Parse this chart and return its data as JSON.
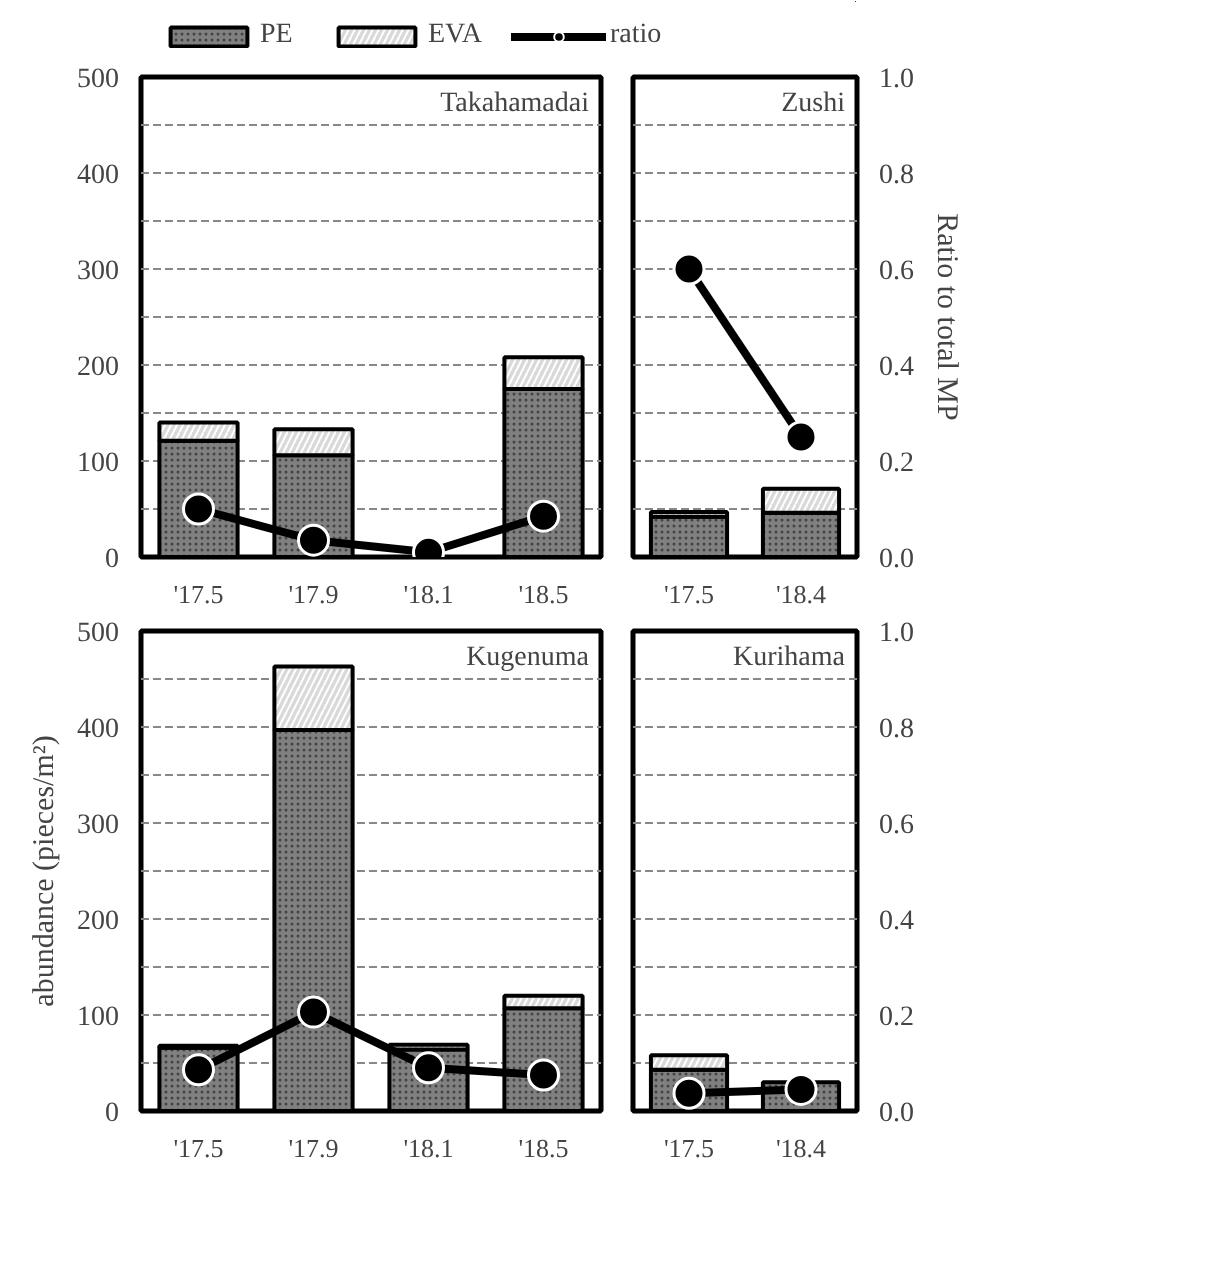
{
  "chart_data": [
    {
      "type": "bar",
      "title": "Takahamadai",
      "stacked": true,
      "legend": "top",
      "grid": "y",
      "marker": "circle",
      "tick_labels": [
        "x",
        "y"
      ],
      "categories": [
        "'17.5",
        "'17.9",
        "'18.1",
        "'18.5"
      ],
      "ylim": [
        0,
        500
      ],
      "yticks": [
        0,
        {
          "value": 50,
          "label": null
        },
        100,
        {
          "value": 150,
          "label": null
        },
        200,
        {
          "value": 250,
          "label": null
        },
        300,
        {
          "value": 350,
          "label": null
        },
        400,
        {
          "value": 450,
          "label": null
        },
        500
      ],
      "y2lim": [
        0,
        1
      ],
      "series": [
        {
          "name": "PE",
          "color": "#808080",
          "values": [
            121,
            106,
            0,
            175
          ]
        },
        {
          "name": "EVA",
          "color": "#d9d9d9",
          "values": [
            19,
            27,
            0,
            33
          ]
        },
        {
          "name": "ratio",
          "type": "line",
          "axis": "y2",
          "color": "#000000",
          "values": [
            0.1,
            0.035,
            0.01,
            0.085
          ]
        }
      ]
    },
    {
      "type": "bar",
      "title": "Zushi",
      "y2label": "Ratio to total MP",
      "stacked": true,
      "grid": "y",
      "marker": "circle",
      "tick_labels": [
        "x",
        "y2"
      ],
      "categories": [
        "'17.5",
        "'18.4"
      ],
      "ylim": [
        0,
        500
      ],
      "y2lim": [
        0,
        1
      ],
      "y2ticks": [
        {
          "value": 0,
          "label": "0.0"
        },
        {
          "value": 0.1,
          "label": null
        },
        0.2,
        {
          "value": 0.3,
          "label": null
        },
        0.4,
        {
          "value": 0.5,
          "label": null
        },
        0.6,
        {
          "value": 0.7,
          "label": null
        },
        0.8,
        {
          "value": 0.9,
          "label": null
        },
        {
          "value": 1,
          "label": "1.0"
        }
      ],
      "series": [
        {
          "color": "#808080",
          "values": [
            42,
            46
          ]
        },
        {
          "color": "#d9d9d9",
          "values": [
            5,
            25
          ]
        },
        {
          "type": "line",
          "axis": "y2",
          "color": "#000000",
          "values": [
            0.6,
            0.25
          ]
        }
      ]
    },
    {
      "type": "bar",
      "title": "Kugenuma",
      "ylabel": "abundance (pieces/m²)",
      "stacked": true,
      "grid": "y",
      "marker": "circle",
      "tick_labels": [
        "x",
        "y"
      ],
      "categories": [
        "'17.5",
        "'17.9",
        "'18.1",
        "'18.5"
      ],
      "ylim": [
        0,
        500
      ],
      "yticks": [
        0,
        {
          "value": 50,
          "label": null
        },
        100,
        {
          "value": 150,
          "label": null
        },
        200,
        {
          "value": 250,
          "label": null
        },
        300,
        {
          "value": 350,
          "label": null
        },
        400,
        {
          "value": 450,
          "label": null
        },
        500
      ],
      "y2lim": [
        0,
        1
      ],
      "series": [
        {
          "color": "#808080",
          "values": [
            66,
            397,
            64,
            107
          ]
        },
        {
          "color": "#d9d9d9",
          "values": [
            2,
            66,
            5,
            13
          ]
        },
        {
          "type": "line",
          "axis": "y2",
          "color": "#000000",
          "values": [
            0.086,
            0.206,
            0.09,
            0.075
          ]
        }
      ]
    },
    {
      "type": "bar",
      "title": "Kurihama",
      "stacked": true,
      "grid": "y",
      "marker": "circle",
      "tick_labels": [
        "x",
        "y2"
      ],
      "categories": [
        "'17.5",
        "'18.4"
      ],
      "ylim": [
        0,
        500
      ],
      "y2lim": [
        0,
        1
      ],
      "y2ticks": [
        {
          "value": 0,
          "label": "0.0"
        },
        {
          "value": 0.1,
          "label": null
        },
        0.2,
        {
          "value": 0.3,
          "label": null
        },
        0.4,
        {
          "value": 0.5,
          "label": null
        },
        0.6,
        {
          "value": 0.7,
          "label": null
        },
        0.8,
        {
          "value": 0.9,
          "label": null
        },
        {
          "value": 1,
          "label": "1.0"
        }
      ],
      "series": [
        {
          "color": "#808080",
          "values": [
            43,
            30
          ]
        },
        {
          "color": "#d9d9d9",
          "values": [
            15,
            0
          ]
        },
        {
          "type": "line",
          "axis": "y2",
          "color": "#000000",
          "values": [
            0.037,
            0.045
          ]
        }
      ]
    }
  ]
}
